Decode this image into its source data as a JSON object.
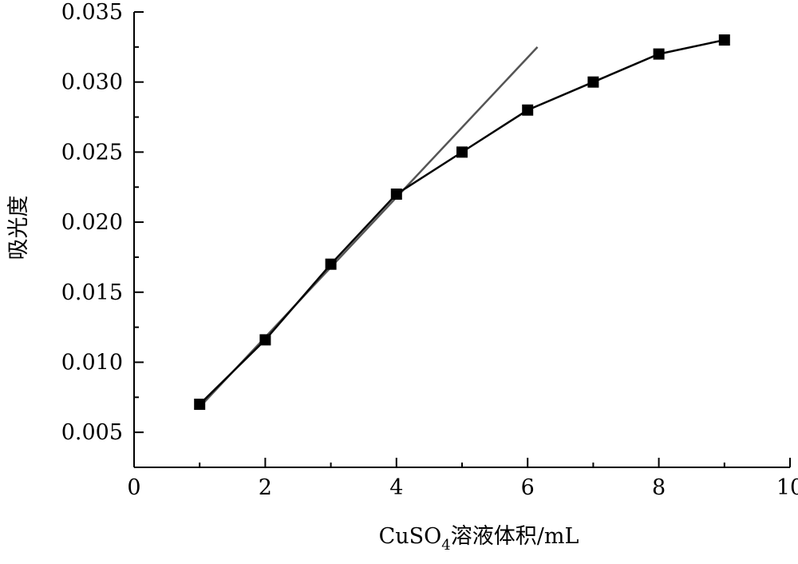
{
  "chart_data": {
    "type": "line",
    "title": "",
    "xlabel_main": "CuSO",
    "xlabel_sub": "4",
    "xlabel_rest": "溶液体积/mL",
    "ylabel": "吸光度",
    "xlim": [
      0,
      10
    ],
    "ylim": [
      0.0025,
      0.035
    ],
    "x_ticks": [
      0,
      2,
      4,
      6,
      8,
      10
    ],
    "x_tick_labels": [
      "0",
      "2",
      "4",
      "6",
      "8",
      "10"
    ],
    "y_ticks": [
      0.005,
      0.01,
      0.015,
      0.02,
      0.025,
      0.03,
      0.035
    ],
    "y_tick_labels": [
      "0.005",
      "0.010",
      "0.015",
      "0.020",
      "0.025",
      "0.030",
      "0.035"
    ],
    "grid": false,
    "series": [
      {
        "marker": "square",
        "color": "#000000",
        "x": [
          1,
          2,
          3,
          4,
          5,
          6,
          7,
          8,
          9
        ],
        "y": [
          0.007,
          0.0116,
          0.017,
          0.022,
          0.025,
          0.028,
          0.03,
          0.032,
          0.033
        ]
      },
      {
        "kind": "fit-line",
        "color": "#555555",
        "x": [
          1,
          6.15
        ],
        "y": [
          0.0068,
          0.0325
        ]
      }
    ]
  }
}
